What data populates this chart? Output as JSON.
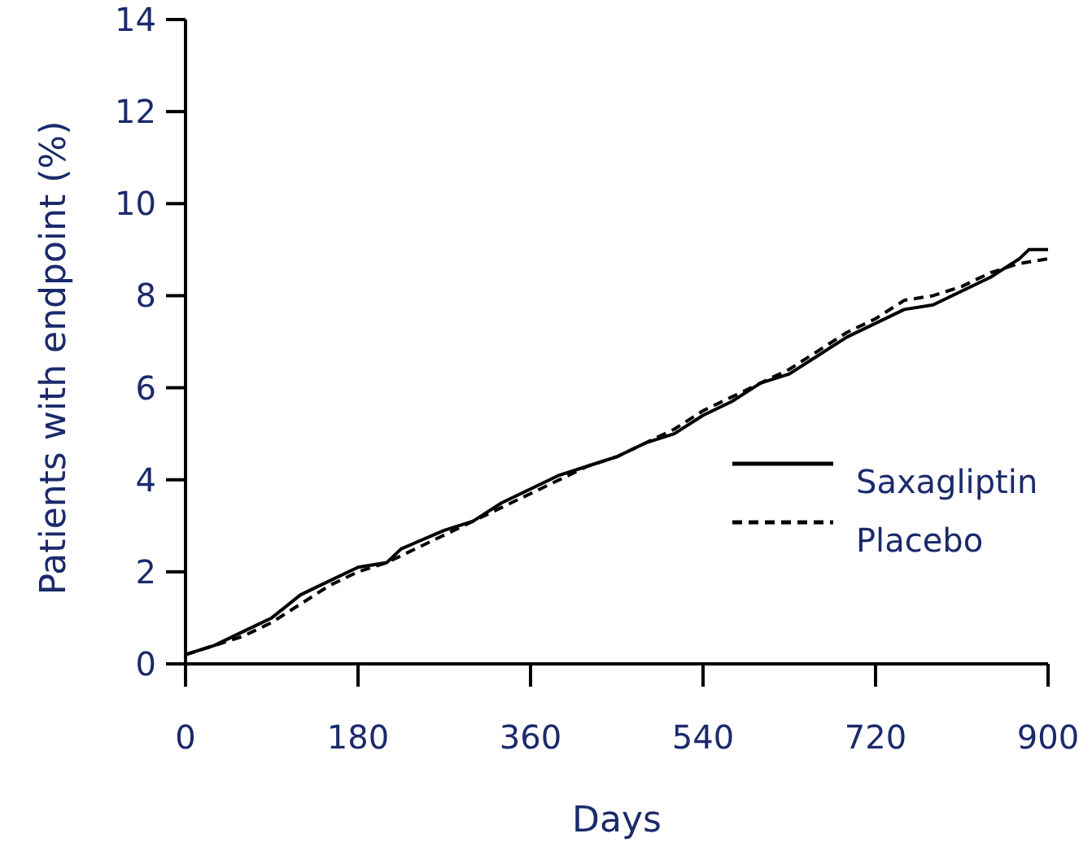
{
  "chart_data": {
    "type": "line",
    "xlabel": "Days",
    "ylabel": "Patients with endpoint (%)",
    "xlim": [
      0,
      900
    ],
    "xticks": [
      0,
      180,
      360,
      540,
      720,
      900
    ],
    "ylim": [
      0,
      14
    ],
    "yticks": [
      0,
      2,
      4,
      6,
      8,
      10,
      12,
      14
    ],
    "legend": "right",
    "grid": false,
    "series": [
      {
        "name": "Saxagliptin",
        "color": "#000000",
        "line_style": "solid",
        "x": [
          0,
          30,
          60,
          90,
          120,
          150,
          180,
          210,
          225,
          270,
          300,
          330,
          360,
          390,
          420,
          450,
          480,
          510,
          540,
          570,
          600,
          630,
          660,
          690,
          720,
          750,
          780,
          810,
          840,
          870,
          880,
          900
        ],
        "values": [
          0.2,
          0.4,
          0.7,
          1.0,
          1.5,
          1.8,
          2.1,
          2.2,
          2.5,
          2.9,
          3.1,
          3.5,
          3.8,
          4.1,
          4.3,
          4.5,
          4.8,
          5.0,
          5.4,
          5.7,
          6.1,
          6.3,
          6.7,
          7.1,
          7.4,
          7.7,
          7.8,
          8.1,
          8.4,
          8.8,
          9.0,
          9.0
        ]
      },
      {
        "name": "Placebo",
        "color": "#000000",
        "line_style": "dashed",
        "x": [
          0,
          30,
          60,
          90,
          120,
          150,
          180,
          210,
          240,
          270,
          300,
          330,
          360,
          390,
          420,
          450,
          480,
          510,
          540,
          570,
          600,
          630,
          660,
          690,
          720,
          750,
          780,
          810,
          840,
          870,
          900
        ],
        "values": [
          0.2,
          0.4,
          0.6,
          0.9,
          1.3,
          1.7,
          2.0,
          2.2,
          2.5,
          2.8,
          3.1,
          3.4,
          3.7,
          4.0,
          4.3,
          4.5,
          4.8,
          5.1,
          5.5,
          5.8,
          6.1,
          6.4,
          6.8,
          7.2,
          7.5,
          7.9,
          8.0,
          8.2,
          8.5,
          8.7,
          8.8
        ]
      }
    ]
  }
}
